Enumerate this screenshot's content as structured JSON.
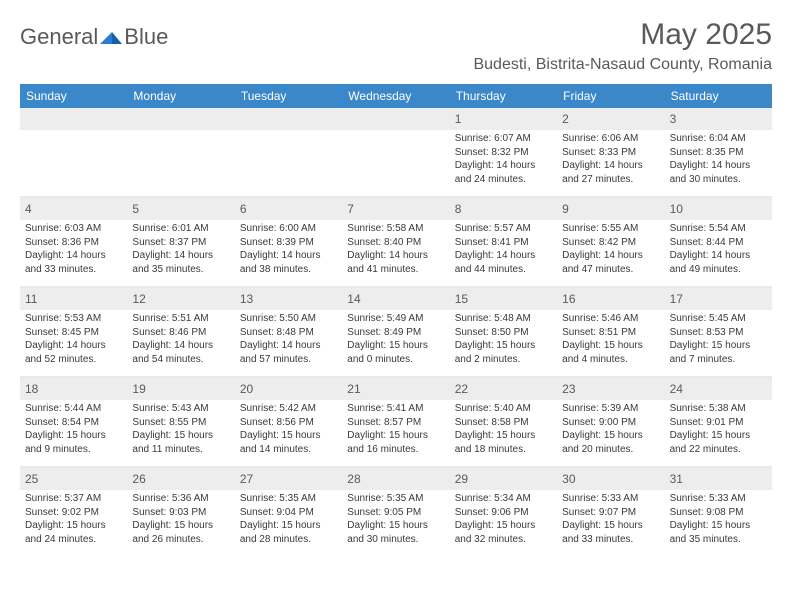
{
  "logo": {
    "text_left": "General",
    "text_right": "Blue"
  },
  "title": "May 2025",
  "location": "Budesti, Bistrita-Nasaud County, Romania",
  "colors": {
    "header_bg": "#3a87c9",
    "header_text": "#ffffff",
    "daynum_bg": "#ededed",
    "text_gray": "#5a5a5a",
    "body_text": "#3a3a3a",
    "row_divider": "#e9e9e9",
    "logo_blue": "#2b7cd3"
  },
  "day_names": [
    "Sunday",
    "Monday",
    "Tuesday",
    "Wednesday",
    "Thursday",
    "Friday",
    "Saturday"
  ],
  "weeks": [
    [
      null,
      null,
      null,
      null,
      {
        "n": "1",
        "sunrise": "6:07 AM",
        "sunset": "8:32 PM",
        "daylight": "14 hours and 24 minutes."
      },
      {
        "n": "2",
        "sunrise": "6:06 AM",
        "sunset": "8:33 PM",
        "daylight": "14 hours and 27 minutes."
      },
      {
        "n": "3",
        "sunrise": "6:04 AM",
        "sunset": "8:35 PM",
        "daylight": "14 hours and 30 minutes."
      }
    ],
    [
      {
        "n": "4",
        "sunrise": "6:03 AM",
        "sunset": "8:36 PM",
        "daylight": "14 hours and 33 minutes."
      },
      {
        "n": "5",
        "sunrise": "6:01 AM",
        "sunset": "8:37 PM",
        "daylight": "14 hours and 35 minutes."
      },
      {
        "n": "6",
        "sunrise": "6:00 AM",
        "sunset": "8:39 PM",
        "daylight": "14 hours and 38 minutes."
      },
      {
        "n": "7",
        "sunrise": "5:58 AM",
        "sunset": "8:40 PM",
        "daylight": "14 hours and 41 minutes."
      },
      {
        "n": "8",
        "sunrise": "5:57 AM",
        "sunset": "8:41 PM",
        "daylight": "14 hours and 44 minutes."
      },
      {
        "n": "9",
        "sunrise": "5:55 AM",
        "sunset": "8:42 PM",
        "daylight": "14 hours and 47 minutes."
      },
      {
        "n": "10",
        "sunrise": "5:54 AM",
        "sunset": "8:44 PM",
        "daylight": "14 hours and 49 minutes."
      }
    ],
    [
      {
        "n": "11",
        "sunrise": "5:53 AM",
        "sunset": "8:45 PM",
        "daylight": "14 hours and 52 minutes."
      },
      {
        "n": "12",
        "sunrise": "5:51 AM",
        "sunset": "8:46 PM",
        "daylight": "14 hours and 54 minutes."
      },
      {
        "n": "13",
        "sunrise": "5:50 AM",
        "sunset": "8:48 PM",
        "daylight": "14 hours and 57 minutes."
      },
      {
        "n": "14",
        "sunrise": "5:49 AM",
        "sunset": "8:49 PM",
        "daylight": "15 hours and 0 minutes."
      },
      {
        "n": "15",
        "sunrise": "5:48 AM",
        "sunset": "8:50 PM",
        "daylight": "15 hours and 2 minutes."
      },
      {
        "n": "16",
        "sunrise": "5:46 AM",
        "sunset": "8:51 PM",
        "daylight": "15 hours and 4 minutes."
      },
      {
        "n": "17",
        "sunrise": "5:45 AM",
        "sunset": "8:53 PM",
        "daylight": "15 hours and 7 minutes."
      }
    ],
    [
      {
        "n": "18",
        "sunrise": "5:44 AM",
        "sunset": "8:54 PM",
        "daylight": "15 hours and 9 minutes."
      },
      {
        "n": "19",
        "sunrise": "5:43 AM",
        "sunset": "8:55 PM",
        "daylight": "15 hours and 11 minutes."
      },
      {
        "n": "20",
        "sunrise": "5:42 AM",
        "sunset": "8:56 PM",
        "daylight": "15 hours and 14 minutes."
      },
      {
        "n": "21",
        "sunrise": "5:41 AM",
        "sunset": "8:57 PM",
        "daylight": "15 hours and 16 minutes."
      },
      {
        "n": "22",
        "sunrise": "5:40 AM",
        "sunset": "8:58 PM",
        "daylight": "15 hours and 18 minutes."
      },
      {
        "n": "23",
        "sunrise": "5:39 AM",
        "sunset": "9:00 PM",
        "daylight": "15 hours and 20 minutes."
      },
      {
        "n": "24",
        "sunrise": "5:38 AM",
        "sunset": "9:01 PM",
        "daylight": "15 hours and 22 minutes."
      }
    ],
    [
      {
        "n": "25",
        "sunrise": "5:37 AM",
        "sunset": "9:02 PM",
        "daylight": "15 hours and 24 minutes."
      },
      {
        "n": "26",
        "sunrise": "5:36 AM",
        "sunset": "9:03 PM",
        "daylight": "15 hours and 26 minutes."
      },
      {
        "n": "27",
        "sunrise": "5:35 AM",
        "sunset": "9:04 PM",
        "daylight": "15 hours and 28 minutes."
      },
      {
        "n": "28",
        "sunrise": "5:35 AM",
        "sunset": "9:05 PM",
        "daylight": "15 hours and 30 minutes."
      },
      {
        "n": "29",
        "sunrise": "5:34 AM",
        "sunset": "9:06 PM",
        "daylight": "15 hours and 32 minutes."
      },
      {
        "n": "30",
        "sunrise": "5:33 AM",
        "sunset": "9:07 PM",
        "daylight": "15 hours and 33 minutes."
      },
      {
        "n": "31",
        "sunrise": "5:33 AM",
        "sunset": "9:08 PM",
        "daylight": "15 hours and 35 minutes."
      }
    ]
  ],
  "labels": {
    "sunrise": "Sunrise:",
    "sunset": "Sunset:",
    "daylight": "Daylight:"
  }
}
